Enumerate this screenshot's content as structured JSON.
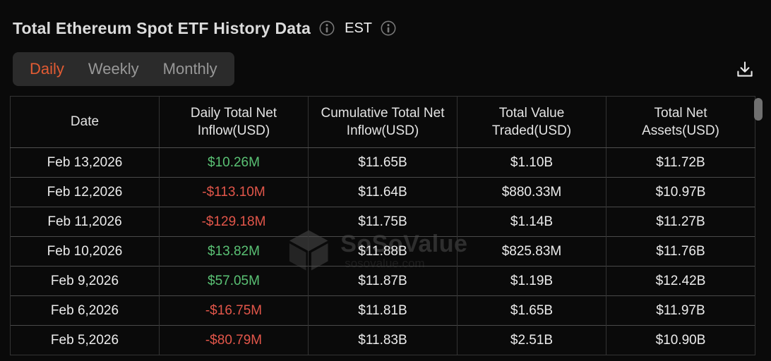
{
  "colors": {
    "accent": "#e25b33",
    "positive": "#5ac174",
    "negative": "#e2564a"
  },
  "header": {
    "title": "Total Ethereum Spot ETF History Data",
    "timezone_label": "EST"
  },
  "tabs": {
    "items": [
      {
        "label": "Daily",
        "active": true
      },
      {
        "label": "Weekly",
        "active": false
      },
      {
        "label": "Monthly",
        "active": false
      }
    ]
  },
  "watermark": {
    "brand": "SoSoValue",
    "domain": "sosovalue.com"
  },
  "table": {
    "columns": [
      "Date",
      "Daily Total Net Inflow(USD)",
      "Cumulative Total Net Inflow(USD)",
      "Total Value Traded(USD)",
      "Total Net Assets(USD)"
    ],
    "column_keys": [
      "date",
      "daily-net-inflow",
      "cumulative-net-inflow",
      "value-traded",
      "net-assets"
    ],
    "rows": [
      [
        "Feb 13,2026",
        "$10.26M",
        "$11.65B",
        "$1.10B",
        "$11.72B"
      ],
      [
        "Feb 12,2026",
        "-$113.10M",
        "$11.64B",
        "$880.33M",
        "$10.97B"
      ],
      [
        "Feb 11,2026",
        "-$129.18M",
        "$11.75B",
        "$1.14B",
        "$11.27B"
      ],
      [
        "Feb 10,2026",
        "$13.82M",
        "$11.88B",
        "$825.83M",
        "$11.76B"
      ],
      [
        "Feb 9,2026",
        "$57.05M",
        "$11.87B",
        "$1.19B",
        "$12.42B"
      ],
      [
        "Feb 6,2026",
        "-$16.75M",
        "$11.81B",
        "$1.65B",
        "$11.97B"
      ],
      [
        "Feb 5,2026",
        "-$80.79M",
        "$11.83B",
        "$2.51B",
        "$10.90B"
      ]
    ]
  }
}
